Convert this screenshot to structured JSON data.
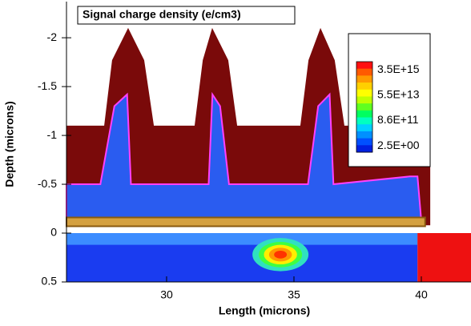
{
  "chart_data": {
    "type": "contour",
    "title": "Signal charge density (e/cm3)",
    "xlabel": "Length (microns)",
    "ylabel": "Depth (microns)",
    "xlim": [
      26.07,
      41.95
    ],
    "ylim": [
      0.5,
      -2.37
    ],
    "xticks": [
      30,
      35,
      40
    ],
    "yticks": [
      -2,
      -1.5,
      -1,
      -0.5,
      0,
      0.5
    ],
    "regions": [
      {
        "color": "#1a3cf0",
        "x": [
          26.07,
          39.85,
          39.85,
          26.07
        ],
        "y": [
          0,
          0,
          0.5,
          0.5
        ]
      },
      {
        "color": "#3c8cff",
        "x": [
          26.07,
          39.85,
          39.85,
          26.07
        ],
        "y": [
          0,
          0,
          0.12,
          0.12
        ]
      },
      {
        "color": "#ee1111",
        "x": [
          39.85,
          41.95,
          41.95,
          39.85
        ],
        "y": [
          0,
          0,
          0.5,
          0.5
        ]
      },
      {
        "color": "#7a0a0a",
        "x": [
          26.07,
          26.07,
          27.55,
          27.86,
          28.49,
          29.12,
          29.5,
          31.1,
          31.42,
          31.79,
          32.42,
          32.77,
          35.25,
          35.57,
          36.04,
          36.6,
          36.98,
          40.35,
          40.35
        ],
        "y": [
          -0.08,
          -1.1,
          -1.1,
          -1.77,
          -2.1,
          -1.77,
          -1.1,
          -1.1,
          -1.77,
          -2.1,
          -1.77,
          -1.1,
          -1.1,
          -1.77,
          -2.1,
          -1.77,
          -1.1,
          -1.1,
          -0.08
        ]
      },
      {
        "color": "#2a5cf0",
        "stroke": "#ff40ff",
        "x": [
          26.07,
          26.07,
          27.4,
          27.95,
          28.45,
          28.6,
          31.65,
          31.8,
          32.1,
          32.45,
          35.55,
          35.95,
          36.4,
          36.55,
          39.55,
          39.85,
          40.0
        ],
        "y": [
          -0.12,
          -0.5,
          -0.5,
          -1.3,
          -1.42,
          -0.5,
          -0.5,
          -1.42,
          -1.3,
          -0.5,
          -0.5,
          -1.3,
          -1.42,
          -0.5,
          -0.58,
          -0.58,
          -0.12
        ]
      },
      {
        "color": "#d4a040",
        "stroke": "#8a5a10",
        "x": [
          26.07,
          40.15,
          40.15,
          26.07
        ],
        "y": [
          -0.07,
          -0.07,
          -0.16,
          -0.16
        ]
      }
    ],
    "spots": [
      {
        "color": "#30e0c0",
        "cx": 34.47,
        "cy": 0.22,
        "rx": 1.1,
        "ry": 0.17
      },
      {
        "color": "#40ff40",
        "cx": 34.47,
        "cy": 0.22,
        "rx": 0.85,
        "ry": 0.13
      },
      {
        "color": "#ffee00",
        "cx": 34.47,
        "cy": 0.22,
        "rx": 0.65,
        "ry": 0.1
      },
      {
        "color": "#ff9900",
        "cx": 34.47,
        "cy": 0.22,
        "rx": 0.45,
        "ry": 0.07
      },
      {
        "color": "#ff3300",
        "cx": 34.47,
        "cy": 0.22,
        "rx": 0.25,
        "ry": 0.04
      }
    ],
    "legend": {
      "colors": [
        "#ff1010",
        "#ff5a00",
        "#ff9a00",
        "#ffd000",
        "#ffff00",
        "#c0ff00",
        "#60ff20",
        "#00ff60",
        "#00ffc0",
        "#00d0ff",
        "#0090ff",
        "#0050ff",
        "#0020e0"
      ],
      "labels": [
        "3.5E+15",
        "5.5E+13",
        "8.6E+11",
        "2.5E+00"
      ]
    }
  }
}
